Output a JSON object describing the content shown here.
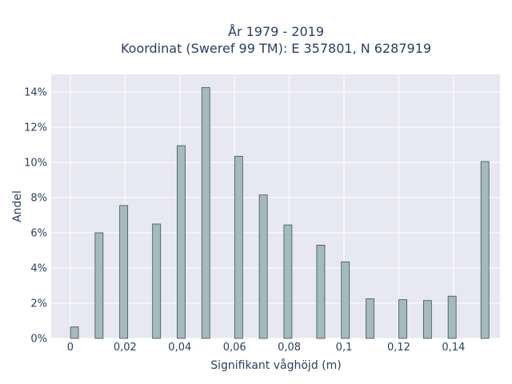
{
  "chart_data": {
    "type": "bar",
    "title_line1": "År 1979 - 2019",
    "title_line2": "Koordinat (Sweref 99 TM): E 357801, N 6287919",
    "xlabel": "Signifikant våghöjd (m)",
    "ylabel": "Andel",
    "xlim": [
      -0.007,
      0.157
    ],
    "ylim": [
      0,
      15
    ],
    "xticks": [
      0,
      0.02,
      0.04,
      0.06,
      0.08,
      0.1,
      0.12,
      0.14
    ],
    "xtick_labels": [
      "0",
      "0,02",
      "0,04",
      "0,06",
      "0,08",
      "0,1",
      "0,12",
      "0,14"
    ],
    "yticks": [
      0,
      2,
      4,
      6,
      8,
      10,
      12,
      14
    ],
    "ytick_labels": [
      "0%",
      "2%",
      "4%",
      "6%",
      "8%",
      "10%",
      "12%",
      "14%"
    ],
    "x": [
      0.0015,
      0.0105,
      0.0195,
      0.0315,
      0.0405,
      0.0495,
      0.0615,
      0.0705,
      0.0795,
      0.0915,
      0.1005,
      0.1095,
      0.1215,
      0.1305,
      0.1395,
      0.1515
    ],
    "values": [
      0.65,
      6.0,
      7.55,
      6.5,
      10.95,
      14.25,
      10.35,
      8.15,
      6.45,
      5.3,
      4.35,
      2.25,
      2.2,
      2.15,
      2.4,
      10.05
    ],
    "grid": true,
    "colors": {
      "bar_fill": "#a3bbbd",
      "bar_stroke": "#3f4f4f",
      "plot_bg": "#e8e8f2",
      "grid": "#ffffff",
      "text": "#2a3f5f"
    }
  }
}
